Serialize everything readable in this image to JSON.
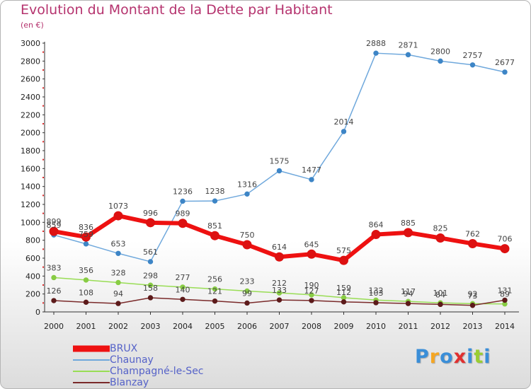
{
  "header": {
    "title": "Evolution du Montant de la Dette par Habitant",
    "unit": "(en €)"
  },
  "logo": {
    "text": "Proxiti",
    "colors": [
      "#3a8ed8",
      "#f5a623",
      "#3a8ed8",
      "#e03030",
      "#3a8ed8",
      "#9acd32",
      "#3a8ed8"
    ]
  },
  "chart_data": {
    "type": "line",
    "title": "Evolution du Montant de la Dette par Habitant",
    "ylabel": "(en €)",
    "xlabel": "",
    "ylim": [
      0,
      3000
    ],
    "y_ticks": [
      0,
      200,
      400,
      600,
      800,
      1000,
      1200,
      1400,
      1600,
      1800,
      2000,
      2200,
      2400,
      2600,
      2800,
      3000
    ],
    "grid": false,
    "legend_position": "bottom-left",
    "categories": [
      "2000",
      "2001",
      "2002",
      "2003",
      "2004",
      "2005",
      "2006",
      "2007",
      "2008",
      "2009",
      "2010",
      "2011",
      "2012",
      "2013",
      "2014"
    ],
    "series": [
      {
        "name": "BRUX",
        "color": "#ee1111",
        "marker_color": "#dd1111",
        "values": [
          899,
          836,
          1073,
          996,
          989,
          851,
          750,
          614,
          645,
          575,
          864,
          885,
          825,
          762,
          706
        ]
      },
      {
        "name": "Chaunay",
        "color": "#6fa8dc",
        "marker_color": "#3d85c6",
        "values": [
          859,
          759,
          653,
          561,
          1236,
          1238,
          1316,
          1575,
          1477,
          2014,
          2888,
          2871,
          2800,
          2757,
          2677
        ]
      },
      {
        "name": "Champagné-le-Sec",
        "color": "#99dd55",
        "marker_color": "#88cc44",
        "values": [
          383,
          356,
          328,
          298,
          277,
          256,
          233,
          212,
          190,
          159,
          132,
          117,
          101,
          92,
          89
        ]
      },
      {
        "name": "Blanzay",
        "color": "#7a2a2a",
        "marker_color": "#5c1a1a",
        "values": [
          126,
          108,
          94,
          158,
          140,
          121,
          99,
          133,
          127,
          112,
          103,
          94,
          84,
          73,
          131
        ]
      }
    ]
  }
}
